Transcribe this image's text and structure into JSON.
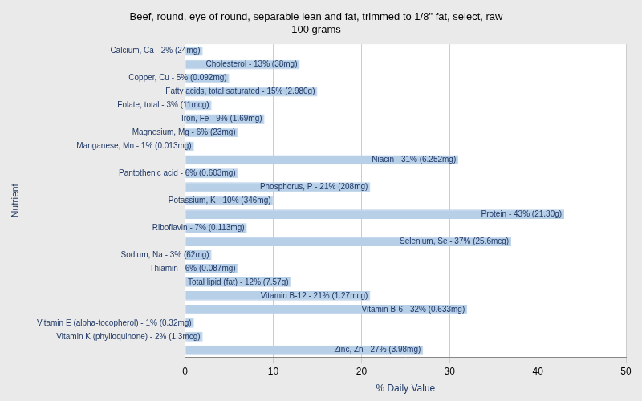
{
  "chart_data": {
    "type": "bar",
    "orientation": "horizontal",
    "title": "Beef, round, eye of round, separable lean and fat, trimmed to 1/8\" fat, select, raw\n100 grams",
    "xlabel": "% Daily Value",
    "ylabel": "Nutrient",
    "categories": [
      "Calcium, Ca - 2% (24mg)",
      "Cholesterol - 13% (38mg)",
      "Copper, Cu - 5% (0.092mg)",
      "Fatty acids, total saturated - 15% (2.980g)",
      "Folate, total - 3% (11mcg)",
      "Iron, Fe - 9% (1.69mg)",
      "Magnesium, Mg - 6% (23mg)",
      "Manganese, Mn - 1% (0.013mg)",
      "Niacin - 31% (6.252mg)",
      "Pantothenic acid - 6% (0.603mg)",
      "Phosphorus, P - 21% (208mg)",
      "Potassium, K - 10% (346mg)",
      "Protein - 43% (21.30g)",
      "Riboflavin - 7% (0.113mg)",
      "Selenium, Se - 37% (25.6mcg)",
      "Sodium, Na - 3% (62mg)",
      "Thiamin - 6% (0.087mg)",
      "Total lipid (fat) - 12% (7.57g)",
      "Vitamin B-12 - 21% (1.27mcg)",
      "Vitamin B-6 - 32% (0.633mg)",
      "Vitamin E (alpha-tocopherol) - 1% (0.32mg)",
      "Vitamin K (phylloquinone) - 2% (1.3mcg)",
      "Zinc, Zn - 27% (3.98mg)"
    ],
    "values": [
      2,
      13,
      5,
      15,
      3,
      9,
      6,
      1,
      31,
      6,
      21,
      10,
      43,
      7,
      37,
      3,
      6,
      12,
      21,
      32,
      1,
      2,
      27
    ],
    "color": "#b8cfe8",
    "xlim": [
      0,
      50
    ],
    "xticks": [
      0,
      10,
      20,
      30,
      40,
      50
    ],
    "grid": true,
    "tick_labels": "x"
  }
}
